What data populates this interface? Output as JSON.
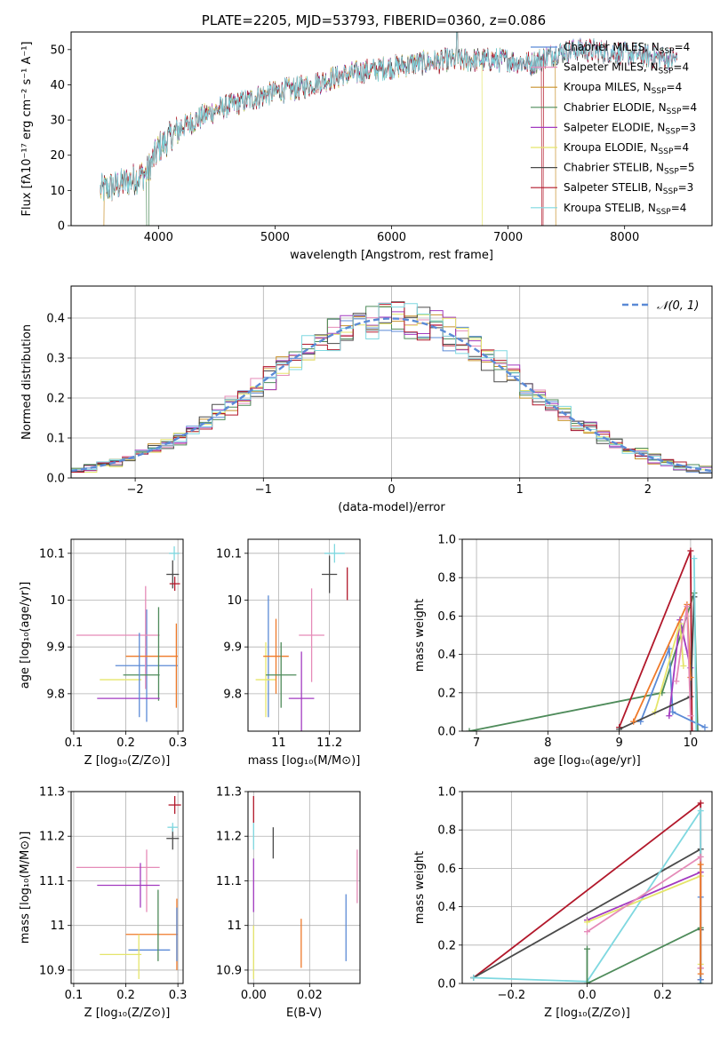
{
  "colors": {
    "Chabrier MILES": "#5b8ad6",
    "Salpeter MILES": "#e58bb8",
    "Kroupa MILES": "#c8902b",
    "Chabrier ELODIE": "#4e8b5a",
    "Salpeter ELODIE": "#a23ac0",
    "Kroupa ELODIE": "#e5e56b",
    "Chabrier STELIB": "#4a4a4a",
    "Salpeter STELIB": "#b2182b",
    "Kroupa STELIB": "#7fd8e0",
    "model_extra": "#ef7a2a",
    "normal_curve": "#5b8ad6"
  },
  "chart_data": [
    {
      "id": "spectrum",
      "type": "line",
      "title": "PLATE=2205, MJD=53793, FIBERID=0360, z=0.086",
      "xlabel": "wavelength [Angstrom, rest frame]",
      "ylabel": "Flux [fλ10⁻¹⁷ erg cm⁻² s⁻¹ A⁻¹]",
      "xlim": [
        3250,
        8750
      ],
      "ylim": [
        0,
        55
      ],
      "xticks": [
        "4000",
        "5000",
        "6000",
        "7000",
        "8000"
      ],
      "yticks": [
        "0",
        "10",
        "20",
        "30",
        "40",
        "50"
      ],
      "legend": [
        {
          "name": "Chabrier MILES",
          "nssp": "4"
        },
        {
          "name": "Salpeter MILES",
          "nssp": "4"
        },
        {
          "name": "Kroupa MILES",
          "nssp": "4"
        },
        {
          "name": "Chabrier ELODIE",
          "nssp": "4"
        },
        {
          "name": "Salpeter ELODIE",
          "nssp": "3"
        },
        {
          "name": "Kroupa ELODIE",
          "nssp": "4"
        },
        {
          "name": "Chabrier STELIB",
          "nssp": "5"
        },
        {
          "name": "Salpeter STELIB",
          "nssp": "3"
        },
        {
          "name": "Kroupa STELIB",
          "nssp": "4"
        }
      ],
      "legend_placement": "upper-right",
      "continuum": [
        [
          3500,
          10
        ],
        [
          3700,
          12
        ],
        [
          3900,
          15
        ],
        [
          4000,
          22
        ],
        [
          4200,
          28
        ],
        [
          4500,
          33
        ],
        [
          4800,
          36
        ],
        [
          5000,
          38
        ],
        [
          5200,
          39
        ],
        [
          5500,
          42
        ],
        [
          5800,
          44
        ],
        [
          6000,
          45
        ],
        [
          6200,
          46
        ],
        [
          6500,
          47
        ],
        [
          6800,
          47
        ],
        [
          7000,
          47
        ],
        [
          7200,
          46
        ],
        [
          7400,
          49
        ],
        [
          7600,
          50
        ],
        [
          8000,
          49
        ],
        [
          8500,
          47
        ]
      ],
      "drops": [
        {
          "series": "Kroupa MILES",
          "from": 3500,
          "to": 3530
        },
        {
          "series": "Chabrier ELODIE",
          "from": 3900,
          "to": 3915
        },
        {
          "series": "Kroupa ELODIE",
          "from": 6780,
          "to": 8750
        },
        {
          "series": "Salpeter STELIB",
          "from": 7290,
          "to": 7300
        },
        {
          "series": "Kroupa MILES",
          "from": 7410,
          "to": 8750
        }
      ]
    },
    {
      "id": "residuals",
      "type": "histogram",
      "xlabel": "(data-model)/error",
      "ylabel": "Normed distribution",
      "xlim": [
        -2.5,
        2.5
      ],
      "ylim": [
        0,
        0.48
      ],
      "xticks": [
        "−2",
        "−1",
        "0",
        "1",
        "2"
      ],
      "yticks": [
        "0.0",
        "0.1",
        "0.2",
        "0.3",
        "0.4"
      ],
      "legend": "𝒩(0, 1)",
      "legend_placement": "upper-right",
      "bin_width": 0.1,
      "bin_start": -2.5
    },
    {
      "id": "age_vs_Z",
      "type": "errorbar",
      "xlabel": "Z [log₁₀(Z/Z⊙)]",
      "ylabel": "age  [log₁₀(age/yr)]",
      "xlim": [
        0.095,
        0.31
      ],
      "ylim": [
        9.72,
        10.13
      ],
      "xticks": [
        0.1,
        0.2,
        0.3
      ],
      "yticks": [
        9.8,
        9.9,
        10.0,
        10.1
      ],
      "points": [
        {
          "series": "Chabrier MILES",
          "x": 0.24,
          "xerr": 0.06,
          "y": 9.86,
          "yerr": 0.12
        },
        {
          "series": "Salpeter MILES",
          "x": 0.185,
          "xerr": 0.08,
          "y": 9.925,
          "yerr": 0.0
        },
        {
          "series": "Salpeter MILES",
          "x": 0.238,
          "xerr": 0.0,
          "y": 9.92,
          "yerr": 0.11
        },
        {
          "series": "model_extra",
          "x": 0.25,
          "xerr": 0.05,
          "y": 9.88,
          "yerr": 0.0
        },
        {
          "series": "model_extra",
          "x": 0.297,
          "xerr": 0.0,
          "y": 9.86,
          "yerr": 0.09
        },
        {
          "series": "Chabrier ELODIE",
          "x": 0.263,
          "xerr": 0.0,
          "y": 9.885,
          "yerr": 0.1
        },
        {
          "series": "Chabrier ELODIE",
          "x": 0.23,
          "xerr": 0.035,
          "y": 9.84,
          "yerr": 0.0
        },
        {
          "series": "Salpeter ELODIE",
          "x": 0.205,
          "xerr": 0.06,
          "y": 9.79,
          "yerr": 0.0
        },
        {
          "series": "Kroupa ELODIE",
          "x": 0.19,
          "xerr": 0.04,
          "y": 9.83,
          "yerr": 0.0
        },
        {
          "series": "Chabrier MILES",
          "x": 0.226,
          "xerr": 0.0,
          "y": 9.84,
          "yerr": 0.09
        },
        {
          "series": "Chabrier STELIB",
          "x": 0.29,
          "xerr": 0.012,
          "y": 10.055,
          "yerr": 0.03
        },
        {
          "series": "Salpeter STELIB",
          "x": 0.294,
          "xerr": 0.01,
          "y": 10.035,
          "yerr": 0.015
        },
        {
          "series": "Kroupa STELIB",
          "x": 0.293,
          "xerr": 0.01,
          "y": 10.1,
          "yerr": 0.015
        }
      ]
    },
    {
      "id": "age_vs_mass",
      "type": "errorbar",
      "xlabel": "mass [log₁₀(M/M⊙)]",
      "ylabel": "",
      "xlim": [
        10.88,
        11.32
      ],
      "ylim": [
        9.72,
        10.13
      ],
      "xticks": [
        11.0,
        11.2
      ],
      "yticks": [
        9.8,
        9.9,
        10.0,
        10.1
      ],
      "points": [
        {
          "series": "Chabrier MILES",
          "x": 10.96,
          "xerr": 0.0,
          "y": 9.88,
          "yerr": 0.13
        },
        {
          "series": "Kroupa ELODIE",
          "x": 10.95,
          "xerr": 0.04,
          "y": 9.83,
          "yerr": 0.08
        },
        {
          "series": "model_extra",
          "x": 10.99,
          "xerr": 0.05,
          "y": 9.88,
          "yerr": 0.08
        },
        {
          "series": "Chabrier ELODIE",
          "x": 11.01,
          "xerr": 0.06,
          "y": 9.84,
          "yerr": 0.07
        },
        {
          "series": "Salpeter ELODIE",
          "x": 11.09,
          "xerr": 0.05,
          "y": 9.79,
          "yerr": 0.1
        },
        {
          "series": "Salpeter MILES",
          "x": 11.13,
          "xerr": 0.05,
          "y": 9.925,
          "yerr": 0.1
        },
        {
          "series": "Chabrier STELIB",
          "x": 11.2,
          "xerr": 0.03,
          "y": 10.055,
          "yerr": 0.04
        },
        {
          "series": "Salpeter STELIB",
          "x": 11.27,
          "xerr": 0.0,
          "y": 10.035,
          "yerr": 0.035
        },
        {
          "series": "Kroupa STELIB",
          "x": 11.22,
          "xerr": 0.04,
          "y": 10.1,
          "yerr": 0.02
        }
      ]
    },
    {
      "id": "weight_vs_age",
      "type": "line",
      "xlabel": "age  [log₁₀(age/yr)]",
      "ylabel": "mass weight",
      "xlim": [
        6.8,
        10.3
      ],
      "ylim": [
        0,
        1.0
      ],
      "xticks": [
        7,
        8,
        9,
        10
      ],
      "yticks": [
        "0.0",
        "0.2",
        "0.4",
        "0.6",
        "0.8",
        "1.0"
      ],
      "series": [
        {
          "name": "Chabrier ELODIE",
          "points": [
            [
              6.9,
              0.0
            ],
            [
              9.6,
              0.2
            ],
            [
              10.05,
              0.72
            ],
            [
              10.1,
              0.0
            ]
          ]
        },
        {
          "name": "Salpeter STELIB",
          "points": [
            [
              9.0,
              0.02
            ],
            [
              10.0,
              0.94
            ],
            [
              10.02,
              0.0
            ]
          ]
        },
        {
          "name": "Chabrier MILES",
          "points": [
            [
              9.3,
              0.05
            ],
            [
              9.7,
              0.43
            ],
            [
              9.75,
              0.1
            ],
            [
              10.2,
              0.02
            ]
          ]
        },
        {
          "name": "Salpeter ELODIE",
          "points": [
            [
              9.7,
              0.08
            ],
            [
              9.85,
              0.58
            ],
            [
              10.0,
              0.33
            ]
          ]
        },
        {
          "name": "Kroupa ELODIE",
          "points": [
            [
              9.5,
              0.1
            ],
            [
              9.85,
              0.56
            ],
            [
              9.9,
              0.34
            ]
          ]
        },
        {
          "name": "Chabrier STELIB",
          "points": [
            [
              9.0,
              0.01
            ],
            [
              10.0,
              0.18
            ],
            [
              10.05,
              0.7
            ]
          ]
        },
        {
          "name": "model_extra",
          "points": [
            [
              9.2,
              0.05
            ],
            [
              9.95,
              0.66
            ],
            [
              10.0,
              0.28
            ]
          ]
        },
        {
          "name": "Salpeter MILES",
          "points": [
            [
              9.8,
              0.26
            ],
            [
              9.95,
              0.65
            ],
            [
              10.0,
              0.08
            ]
          ]
        },
        {
          "name": "Kroupa STELIB",
          "points": [
            [
              10.05,
              0.9
            ],
            [
              10.08,
              0.0
            ]
          ]
        }
      ]
    },
    {
      "id": "mass_vs_Z",
      "type": "errorbar",
      "xlabel": "Z [log₁₀(Z/Z⊙)]",
      "ylabel": "mass [log₁₀(M/M⊙)]",
      "xlim": [
        0.095,
        0.31
      ],
      "ylim": [
        10.87,
        11.3
      ],
      "xticks": [
        0.1,
        0.2,
        0.3
      ],
      "yticks": [
        10.9,
        11.0,
        11.1,
        11.2,
        11.3
      ],
      "points": [
        {
          "series": "Salpeter MILES",
          "x": 0.185,
          "xerr": 0.08,
          "y": 11.13,
          "yerr": 0.0
        },
        {
          "series": "Salpeter MILES",
          "x": 0.24,
          "xerr": 0.0,
          "y": 11.1,
          "yerr": 0.07
        },
        {
          "series": "Salpeter ELODIE",
          "x": 0.205,
          "xerr": 0.06,
          "y": 11.09,
          "yerr": 0.0
        },
        {
          "series": "Salpeter ELODIE",
          "x": 0.228,
          "xerr": 0.0,
          "y": 11.09,
          "yerr": 0.05
        },
        {
          "series": "model_extra",
          "x": 0.25,
          "xerr": 0.05,
          "y": 10.98,
          "yerr": 0.0
        },
        {
          "series": "model_extra",
          "x": 0.298,
          "xerr": 0.0,
          "y": 10.98,
          "yerr": 0.08
        },
        {
          "series": "Chabrier MILES",
          "x": 0.245,
          "xerr": 0.04,
          "y": 10.945,
          "yerr": 0.0
        },
        {
          "series": "Chabrier MILES",
          "x": 0.298,
          "xerr": 0.0,
          "y": 10.98,
          "yerr": 0.06
        },
        {
          "series": "Chabrier ELODIE",
          "x": 0.262,
          "xerr": 0.0,
          "y": 11.0,
          "yerr": 0.08
        },
        {
          "series": "Kroupa ELODIE",
          "x": 0.19,
          "xerr": 0.04,
          "y": 10.935,
          "yerr": 0.0
        },
        {
          "series": "Kroupa ELODIE",
          "x": 0.225,
          "xerr": 0.0,
          "y": 10.93,
          "yerr": 0.05
        },
        {
          "series": "Chabrier STELIB",
          "x": 0.29,
          "xerr": 0.012,
          "y": 11.195,
          "yerr": 0.025
        },
        {
          "series": "Salpeter STELIB",
          "x": 0.294,
          "xerr": 0.012,
          "y": 11.27,
          "yerr": 0.02
        },
        {
          "series": "Kroupa STELIB",
          "x": 0.29,
          "xerr": 0.01,
          "y": 11.22,
          "yerr": 0.01
        }
      ]
    },
    {
      "id": "mass_vs_ebv",
      "type": "errorbar",
      "xlabel": "E(B-V)",
      "ylabel": "",
      "xlim": [
        -0.002,
        0.038
      ],
      "ylim": [
        10.87,
        11.3
      ],
      "xticks": [
        "0.00",
        "0.02"
      ],
      "yticks": [
        10.9,
        11.0,
        11.1,
        11.2,
        11.3
      ],
      "points": [
        {
          "series": "Salpeter STELIB",
          "x": 0.0,
          "xerr": 0.0,
          "y": 11.26,
          "yerr": 0.03
        },
        {
          "series": "Kroupa STELIB",
          "x": 0.0,
          "xerr": 0.0,
          "y": 11.2,
          "yerr": 0.03
        },
        {
          "series": "Salpeter ELODIE",
          "x": 0.0,
          "xerr": 0.0,
          "y": 11.09,
          "yerr": 0.06
        },
        {
          "series": "Kroupa ELODIE",
          "x": 0.0,
          "xerr": 0.0,
          "y": 10.94,
          "yerr": 0.06
        },
        {
          "series": "Chabrier STELIB",
          "x": 0.007,
          "xerr": 0.0,
          "y": 11.185,
          "yerr": 0.035
        },
        {
          "series": "model_extra",
          "x": 0.017,
          "xerr": 0.0,
          "y": 10.96,
          "yerr": 0.055
        },
        {
          "series": "Chabrier MILES",
          "x": 0.033,
          "xerr": 0.0,
          "y": 10.995,
          "yerr": 0.075
        },
        {
          "series": "Salpeter MILES",
          "x": 0.037,
          "xerr": 0.0,
          "y": 11.11,
          "yerr": 0.06
        }
      ]
    },
    {
      "id": "weight_vs_Z",
      "type": "line",
      "xlabel": "Z [log₁₀(Z/Z⊙)]",
      "ylabel": "mass weight",
      "xlim": [
        -0.33,
        0.33
      ],
      "ylim": [
        0,
        1.0
      ],
      "xticks": [
        "−0.2",
        "0.0",
        "0.2"
      ],
      "yticks": [
        "0.0",
        "0.2",
        "0.4",
        "0.6",
        "0.8",
        "1.0"
      ],
      "series": [
        {
          "name": "Salpeter STELIB",
          "points": [
            [
              -0.3,
              0.03
            ],
            [
              0.3,
              0.94
            ],
            [
              0.3,
              0.02
            ]
          ]
        },
        {
          "name": "Chabrier STELIB",
          "points": [
            [
              -0.3,
              0.03
            ],
            [
              0.3,
              0.7
            ],
            [
              0.3,
              0.28
            ]
          ]
        },
        {
          "name": "Kroupa STELIB",
          "points": [
            [
              -0.3,
              0.03
            ],
            [
              0.0,
              0.01
            ],
            [
              0.3,
              0.9
            ],
            [
              0.3,
              0.0
            ]
          ]
        },
        {
          "name": "Salpeter ELODIE",
          "points": [
            [
              0.0,
              0.33
            ],
            [
              0.3,
              0.58
            ],
            [
              0.3,
              0.08
            ]
          ]
        },
        {
          "name": "Kroupa ELODIE",
          "points": [
            [
              0.0,
              0.32
            ],
            [
              0.3,
              0.56
            ],
            [
              0.3,
              0.1
            ]
          ]
        },
        {
          "name": "Salpeter MILES",
          "points": [
            [
              0.0,
              0.27
            ],
            [
              0.3,
              0.66
            ],
            [
              0.3,
              0.08
            ]
          ]
        },
        {
          "name": "Chabrier ELODIE",
          "points": [
            [
              0.0,
              0.18
            ],
            [
              0.0,
              0.0
            ],
            [
              0.3,
              0.29
            ],
            [
              0.3,
              0.0
            ]
          ]
        },
        {
          "name": "Chabrier MILES",
          "points": [
            [
              0.3,
              0.45
            ],
            [
              0.3,
              0.02
            ]
          ]
        },
        {
          "name": "model_extra",
          "points": [
            [
              0.3,
              0.62
            ],
            [
              0.3,
              0.05
            ]
          ]
        }
      ]
    }
  ]
}
